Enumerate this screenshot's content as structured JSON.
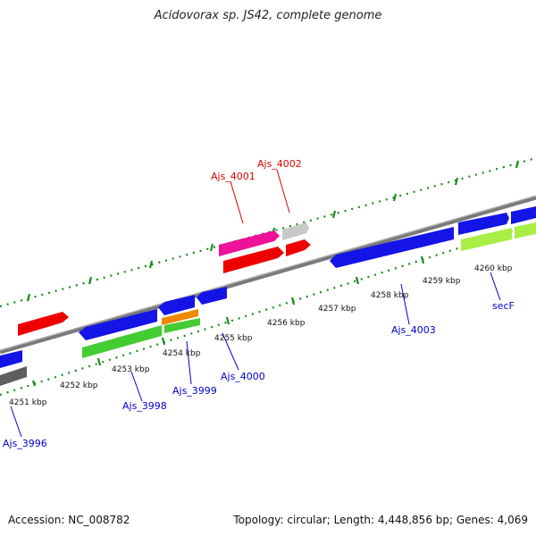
{
  "header": {
    "title": "Acidovorax sp. JS42, complete genome"
  },
  "footer": {
    "accession": "Accession: NC_008782",
    "summary": "Topology: circular; Length: 4,448,856 bp; Genes: 4,069"
  },
  "colors": {
    "backbone": "#8c8c8c",
    "tick": "#1a8a1a",
    "tick_label": "#111111",
    "gene_label_red": "#dd0000",
    "gene_label_blue": "#0000cc",
    "blue": "#1414e6",
    "red": "#ee0000",
    "green": "#44cc33",
    "magenta": "#ee1199",
    "light_gray": "#c8c8c8",
    "dark_gray": "#5e5e5e",
    "orange": "#ee8800",
    "lime": "#a8ee44"
  },
  "kbp_labels": [
    "4251 kbp",
    "4252 kbp",
    "4253 kbp",
    "4254 kbp",
    "4255 kbp",
    "4256 kbp",
    "4257 kbp",
    "4258 kbp",
    "4259 kbp",
    "4260 kbp"
  ],
  "gene_labels": [
    {
      "text": "Ajs_4001",
      "color": "red"
    },
    {
      "text": "Ajs_4002",
      "color": "red"
    },
    {
      "text": "Ajs_4003",
      "color": "blue"
    },
    {
      "text": "secF",
      "color": "blue"
    },
    {
      "text": "Ajs_4000",
      "color": "blue"
    },
    {
      "text": "Ajs_3999",
      "color": "blue"
    },
    {
      "text": "Ajs_3998",
      "color": "blue"
    },
    {
      "text": "Ajs_3996",
      "color": "blue"
    }
  ]
}
